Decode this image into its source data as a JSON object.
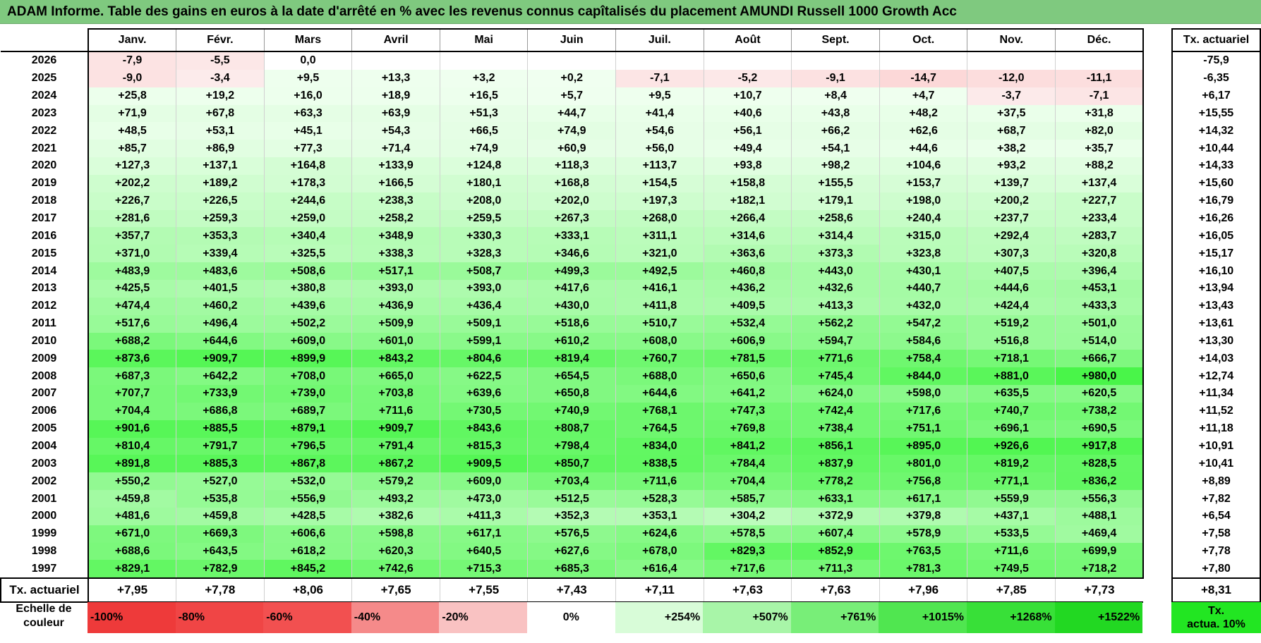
{
  "title": "ADAM Informe. Table des gains en euros à la date d'arrêté en % avec les revenus connus capîtalisés du placement AMUNDI Russell 1000 Growth Acc",
  "months": [
    "Janv.",
    "Févr.",
    "Mars",
    "Avril",
    "Mai",
    "Juin",
    "Juil.",
    "Août",
    "Sept.",
    "Oct.",
    "Nov.",
    "Déc."
  ],
  "side_header": "Tx. actuariel",
  "rows": [
    {
      "year": "2026",
      "values": [
        "-7,9",
        "-5,5",
        "0,0",
        "",
        "",
        "",
        "",
        "",
        "",
        "",
        "",
        ""
      ],
      "tx": "-75,9"
    },
    {
      "year": "2025",
      "values": [
        "-9,0",
        "-3,4",
        "+9,5",
        "+13,3",
        "+3,2",
        "+0,2",
        "-7,1",
        "-5,2",
        "-9,1",
        "-14,7",
        "-12,0",
        "-11,1"
      ],
      "tx": "-6,35"
    },
    {
      "year": "2024",
      "values": [
        "+25,8",
        "+19,2",
        "+16,0",
        "+18,9",
        "+16,5",
        "+5,7",
        "+9,5",
        "+10,7",
        "+8,4",
        "+4,7",
        "-3,7",
        "-7,1"
      ],
      "tx": "+6,17"
    },
    {
      "year": "2023",
      "values": [
        "+71,9",
        "+67,8",
        "+63,3",
        "+63,9",
        "+51,3",
        "+44,7",
        "+41,4",
        "+40,6",
        "+43,8",
        "+48,2",
        "+37,5",
        "+31,8"
      ],
      "tx": "+15,55"
    },
    {
      "year": "2022",
      "values": [
        "+48,5",
        "+53,1",
        "+45,1",
        "+54,3",
        "+66,5",
        "+74,9",
        "+54,6",
        "+56,1",
        "+66,2",
        "+62,6",
        "+68,7",
        "+82,0"
      ],
      "tx": "+14,32"
    },
    {
      "year": "2021",
      "values": [
        "+85,7",
        "+86,9",
        "+77,3",
        "+71,4",
        "+74,9",
        "+60,9",
        "+56,0",
        "+49,4",
        "+54,1",
        "+44,6",
        "+38,2",
        "+35,7"
      ],
      "tx": "+10,44"
    },
    {
      "year": "2020",
      "values": [
        "+127,3",
        "+137,1",
        "+164,8",
        "+133,9",
        "+124,8",
        "+118,3",
        "+113,7",
        "+93,8",
        "+98,2",
        "+104,6",
        "+93,2",
        "+88,2"
      ],
      "tx": "+14,33"
    },
    {
      "year": "2019",
      "values": [
        "+202,2",
        "+189,2",
        "+178,3",
        "+166,5",
        "+180,1",
        "+168,8",
        "+154,5",
        "+158,8",
        "+155,5",
        "+153,7",
        "+139,7",
        "+137,4"
      ],
      "tx": "+15,60"
    },
    {
      "year": "2018",
      "values": [
        "+226,7",
        "+226,5",
        "+244,6",
        "+238,3",
        "+208,0",
        "+202,0",
        "+197,3",
        "+182,1",
        "+179,1",
        "+198,0",
        "+200,2",
        "+227,7"
      ],
      "tx": "+16,79"
    },
    {
      "year": "2017",
      "values": [
        "+281,6",
        "+259,3",
        "+259,0",
        "+258,2",
        "+259,5",
        "+267,3",
        "+268,0",
        "+266,4",
        "+258,6",
        "+240,4",
        "+237,7",
        "+233,4"
      ],
      "tx": "+16,26"
    },
    {
      "year": "2016",
      "values": [
        "+357,7",
        "+353,3",
        "+340,4",
        "+348,9",
        "+330,3",
        "+333,1",
        "+311,1",
        "+314,6",
        "+314,4",
        "+315,0",
        "+292,4",
        "+283,7"
      ],
      "tx": "+16,05"
    },
    {
      "year": "2015",
      "values": [
        "+371,0",
        "+339,4",
        "+325,5",
        "+338,3",
        "+328,3",
        "+346,6",
        "+321,0",
        "+363,6",
        "+373,3",
        "+323,8",
        "+307,3",
        "+320,8"
      ],
      "tx": "+15,17"
    },
    {
      "year": "2014",
      "values": [
        "+483,9",
        "+483,6",
        "+508,6",
        "+517,1",
        "+508,7",
        "+499,3",
        "+492,5",
        "+460,8",
        "+443,0",
        "+430,1",
        "+407,5",
        "+396,4"
      ],
      "tx": "+16,10"
    },
    {
      "year": "2013",
      "values": [
        "+425,5",
        "+401,5",
        "+380,8",
        "+393,0",
        "+393,0",
        "+417,6",
        "+416,1",
        "+436,2",
        "+432,6",
        "+440,7",
        "+444,6",
        "+453,1"
      ],
      "tx": "+13,94"
    },
    {
      "year": "2012",
      "values": [
        "+474,4",
        "+460,2",
        "+439,6",
        "+436,9",
        "+436,4",
        "+430,0",
        "+411,8",
        "+409,5",
        "+413,3",
        "+432,0",
        "+424,4",
        "+433,3"
      ],
      "tx": "+13,43"
    },
    {
      "year": "2011",
      "values": [
        "+517,6",
        "+496,4",
        "+502,2",
        "+509,9",
        "+509,1",
        "+518,6",
        "+510,7",
        "+532,4",
        "+562,2",
        "+547,2",
        "+519,2",
        "+501,0"
      ],
      "tx": "+13,61"
    },
    {
      "year": "2010",
      "values": [
        "+688,2",
        "+644,6",
        "+609,0",
        "+601,0",
        "+599,1",
        "+610,2",
        "+608,0",
        "+606,9",
        "+594,7",
        "+584,6",
        "+516,8",
        "+514,0"
      ],
      "tx": "+13,30"
    },
    {
      "year": "2009",
      "values": [
        "+873,6",
        "+909,7",
        "+899,9",
        "+843,2",
        "+804,6",
        "+819,4",
        "+760,7",
        "+781,5",
        "+771,6",
        "+758,4",
        "+718,1",
        "+666,7"
      ],
      "tx": "+14,03"
    },
    {
      "year": "2008",
      "values": [
        "+687,3",
        "+642,2",
        "+708,0",
        "+665,0",
        "+622,5",
        "+654,5",
        "+688,0",
        "+650,6",
        "+745,4",
        "+844,0",
        "+881,0",
        "+980,0"
      ],
      "tx": "+12,74"
    },
    {
      "year": "2007",
      "values": [
        "+707,7",
        "+733,9",
        "+739,0",
        "+703,8",
        "+639,6",
        "+650,8",
        "+644,6",
        "+641,2",
        "+624,0",
        "+598,0",
        "+635,5",
        "+620,5"
      ],
      "tx": "+11,34"
    },
    {
      "year": "2006",
      "values": [
        "+704,4",
        "+686,8",
        "+689,7",
        "+711,6",
        "+730,5",
        "+740,9",
        "+768,1",
        "+747,3",
        "+742,4",
        "+717,6",
        "+740,7",
        "+738,2"
      ],
      "tx": "+11,52"
    },
    {
      "year": "2005",
      "values": [
        "+901,6",
        "+885,5",
        "+879,1",
        "+909,7",
        "+843,6",
        "+808,7",
        "+764,5",
        "+769,8",
        "+738,4",
        "+751,1",
        "+696,1",
        "+690,5"
      ],
      "tx": "+11,18"
    },
    {
      "year": "2004",
      "values": [
        "+810,4",
        "+791,7",
        "+796,5",
        "+791,4",
        "+815,3",
        "+798,4",
        "+834,0",
        "+841,2",
        "+856,1",
        "+895,0",
        "+926,6",
        "+917,8"
      ],
      "tx": "+10,91"
    },
    {
      "year": "2003",
      "values": [
        "+891,8",
        "+885,3",
        "+867,8",
        "+867,2",
        "+909,5",
        "+850,7",
        "+838,5",
        "+784,4",
        "+837,9",
        "+801,0",
        "+819,2",
        "+828,5"
      ],
      "tx": "+10,41"
    },
    {
      "year": "2002",
      "values": [
        "+550,2",
        "+527,0",
        "+532,0",
        "+579,2",
        "+609,0",
        "+703,4",
        "+711,6",
        "+704,4",
        "+778,2",
        "+756,8",
        "+771,1",
        "+836,2"
      ],
      "tx": "+8,89"
    },
    {
      "year": "2001",
      "values": [
        "+459,8",
        "+535,8",
        "+556,9",
        "+493,2",
        "+473,0",
        "+512,5",
        "+528,3",
        "+585,7",
        "+633,1",
        "+617,1",
        "+559,9",
        "+556,3"
      ],
      "tx": "+7,82"
    },
    {
      "year": "2000",
      "values": [
        "+481,6",
        "+459,8",
        "+428,5",
        "+382,6",
        "+411,3",
        "+352,3",
        "+353,1",
        "+304,2",
        "+372,9",
        "+379,8",
        "+437,1",
        "+488,1"
      ],
      "tx": "+6,54"
    },
    {
      "year": "1999",
      "values": [
        "+671,0",
        "+669,3",
        "+606,6",
        "+598,8",
        "+617,1",
        "+576,5",
        "+624,6",
        "+578,5",
        "+607,4",
        "+578,9",
        "+533,5",
        "+469,4"
      ],
      "tx": "+7,58"
    },
    {
      "year": "1998",
      "values": [
        "+688,6",
        "+643,5",
        "+618,2",
        "+620,3",
        "+640,5",
        "+627,6",
        "+678,0",
        "+829,3",
        "+852,9",
        "+763,5",
        "+711,6",
        "+699,9"
      ],
      "tx": "+7,78"
    },
    {
      "year": "1997",
      "values": [
        "+829,1",
        "+782,9",
        "+845,2",
        "+742,6",
        "+715,3",
        "+685,3",
        "+616,4",
        "+717,6",
        "+711,3",
        "+781,3",
        "+749,5",
        "+718,2"
      ],
      "tx": "+7,80"
    }
  ],
  "footer": {
    "label": "Tx. actuariel",
    "values": [
      "+7,95",
      "+7,78",
      "+8,06",
      "+7,65",
      "+7,55",
      "+7,43",
      "+7,11",
      "+7,63",
      "+7,63",
      "+7,96",
      "+7,85",
      "+7,73"
    ],
    "total": "+8,31"
  },
  "scale": {
    "label_line1": "Echelle de",
    "label_line2": "couleur",
    "steps": [
      {
        "label": "-100%",
        "color": "#ee3a3a",
        "kind": "neg"
      },
      {
        "label": "-80%",
        "color": "#f04545",
        "kind": "neg"
      },
      {
        "label": "-60%",
        "color": "#f25050",
        "kind": "neg"
      },
      {
        "label": "-40%",
        "color": "#f58a8a",
        "kind": "neg"
      },
      {
        "label": "-20%",
        "color": "#f9c2c2",
        "kind": "neg"
      },
      {
        "label": "0%",
        "color": "#ffffff",
        "kind": "zero"
      },
      {
        "label": "+254%",
        "color": "#d8fcd8",
        "kind": "pos"
      },
      {
        "label": "+507%",
        "color": "#a8f5a8",
        "kind": "pos"
      },
      {
        "label": "+761%",
        "color": "#78ee78",
        "kind": "pos"
      },
      {
        "label": "+1015%",
        "color": "#50e650",
        "kind": "pos"
      },
      {
        "label": "+1268%",
        "color": "#38e038",
        "kind": "pos"
      },
      {
        "label": "+1522%",
        "color": "#22d822",
        "kind": "pos"
      }
    ],
    "tx_line1": "Tx.",
    "tx_line2": "actua. 10%",
    "tx_color": "#22e622"
  }
}
